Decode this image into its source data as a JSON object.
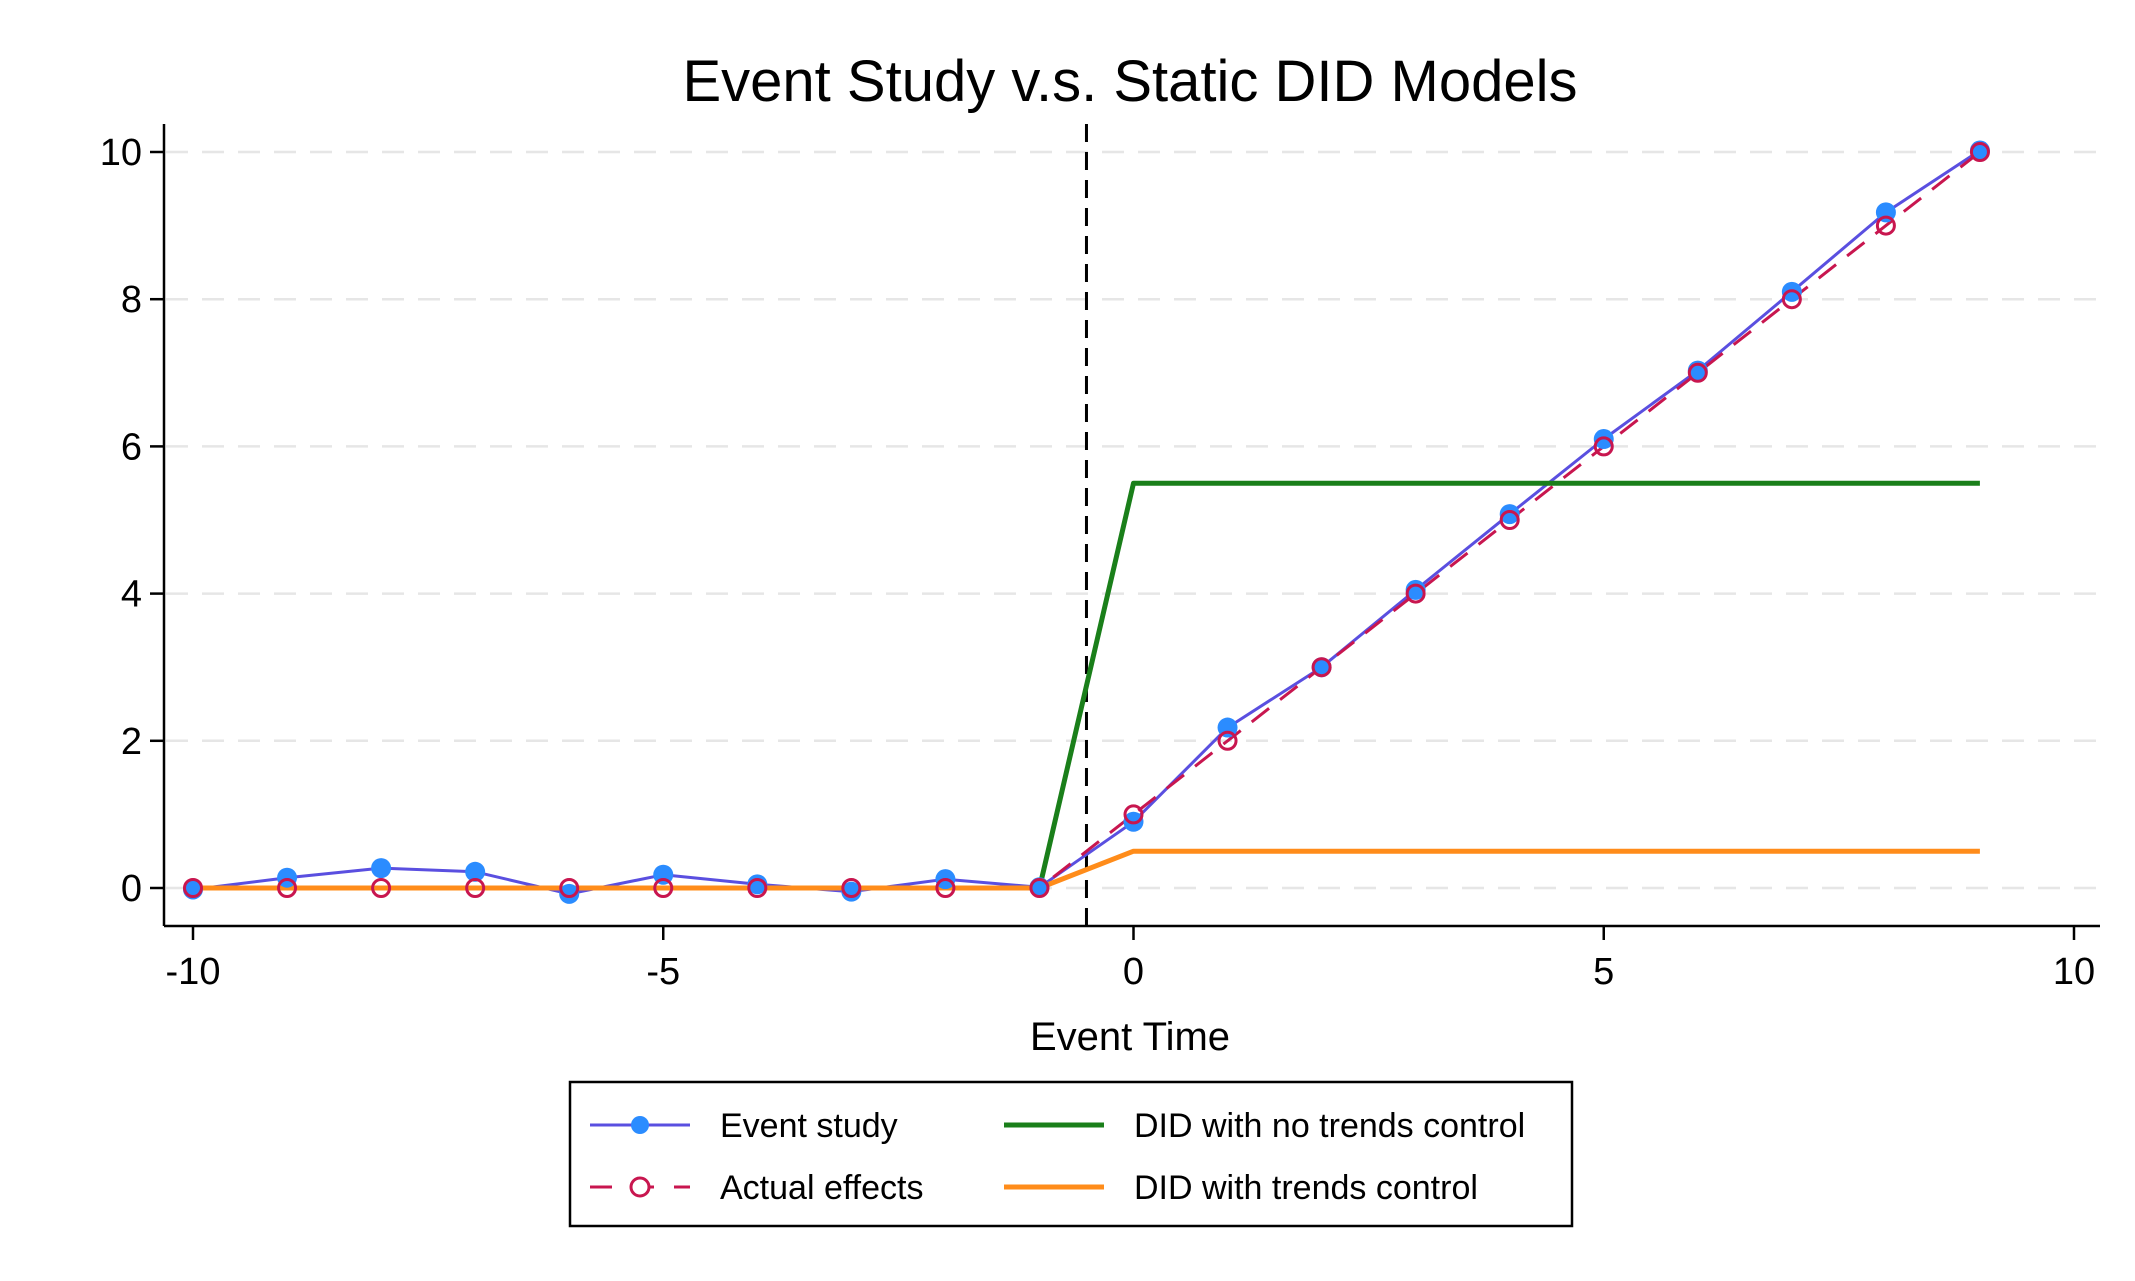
{
  "chart_data": {
    "type": "line",
    "title": "Event Study v.s. Static DID Models",
    "xlabel": "Event Time",
    "ylabel": "",
    "xlim": [
      -10,
      10
    ],
    "ylim": [
      -0.4,
      10
    ],
    "xticks": [
      -10,
      -5,
      0,
      5,
      10
    ],
    "yticks": [
      0,
      2,
      4,
      6,
      8,
      10
    ],
    "x_tick_labels": [
      "-10",
      "-5",
      "0",
      "5",
      "10"
    ],
    "y_tick_labels": [
      "0",
      "2",
      "4",
      "6",
      "8",
      "10"
    ],
    "grid": "horizontal dashed",
    "vline": -0.5,
    "legend_position": "bottom-center",
    "series": [
      {
        "name": "Event study",
        "color": "#5a4fe0",
        "marker_color": "#2b8cff",
        "style": "solid-filled-circle",
        "x": [
          -10,
          -9,
          -8,
          -7,
          -6,
          -5,
          -4,
          -3,
          -2,
          -1,
          0,
          1,
          2,
          3,
          4,
          5,
          6,
          7,
          8,
          9
        ],
        "y": [
          -0.02,
          0.14,
          0.27,
          0.22,
          -0.08,
          0.18,
          0.05,
          -0.05,
          0.12,
          0.01,
          0.9,
          2.18,
          3.0,
          4.05,
          5.08,
          6.1,
          7.03,
          8.1,
          9.18,
          10.02
        ]
      },
      {
        "name": "Actual effects",
        "color": "#c8164f",
        "style": "dashed-hollow-circle",
        "x": [
          -10,
          -9,
          -8,
          -7,
          -6,
          -5,
          -4,
          -3,
          -2,
          -1,
          0,
          1,
          2,
          3,
          4,
          5,
          6,
          7,
          8,
          9
        ],
        "y": [
          0,
          0,
          0,
          0,
          0,
          0,
          0,
          0,
          0,
          0,
          1,
          2,
          3,
          4,
          5,
          6,
          7,
          8,
          9,
          10
        ]
      },
      {
        "name": "DID with no trends control",
        "color": "#1a7f1a",
        "style": "solid",
        "x": [
          -10,
          -1,
          0,
          9
        ],
        "y": [
          0,
          0,
          5.5,
          5.5
        ]
      },
      {
        "name": "DID with trends control",
        "color": "#ff8c1a",
        "style": "solid",
        "x": [
          -10,
          -1,
          0,
          9
        ],
        "y": [
          0,
          0,
          0.5,
          0.5
        ]
      }
    ]
  }
}
